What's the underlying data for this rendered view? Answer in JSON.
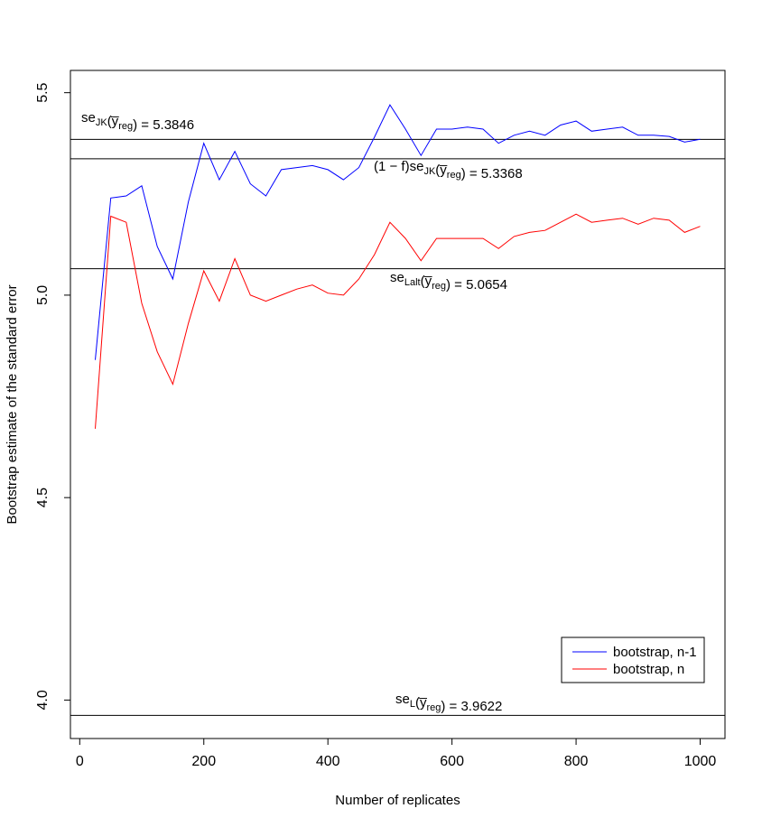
{
  "chart_data": {
    "type": "line",
    "title": "",
    "xlabel": "Number of replicates",
    "ylabel": "Bootstrap estimate of the standard error",
    "xlim": [
      -15,
      1040
    ],
    "ylim": [
      3.905,
      5.555
    ],
    "x_ticks": [
      0,
      200,
      400,
      600,
      800,
      1000
    ],
    "x_tick_labels": [
      "0",
      "200",
      "400",
      "600",
      "800",
      "1000"
    ],
    "y_ticks": [
      4.0,
      4.5,
      5.0,
      5.5
    ],
    "y_tick_labels": [
      "4.0",
      "4.5",
      "5.0",
      "5.5"
    ],
    "x": [
      25,
      50,
      75,
      100,
      125,
      150,
      175,
      200,
      225,
      250,
      275,
      300,
      325,
      350,
      375,
      400,
      425,
      450,
      475,
      500,
      525,
      550,
      575,
      600,
      625,
      650,
      675,
      700,
      725,
      750,
      775,
      800,
      825,
      850,
      875,
      900,
      925,
      950,
      975,
      1000
    ],
    "series": [
      {
        "name": "bootstrap, n-1",
        "color": "#0000ff",
        "values": [
          4.84,
          5.24,
          5.245,
          5.27,
          5.12,
          5.04,
          5.23,
          5.375,
          5.285,
          5.355,
          5.275,
          5.245,
          5.31,
          5.315,
          5.32,
          5.31,
          5.285,
          5.315,
          5.39,
          5.47,
          5.41,
          5.345,
          5.41,
          5.41,
          5.415,
          5.41,
          5.375,
          5.395,
          5.405,
          5.395,
          5.42,
          5.43,
          5.405,
          5.41,
          5.415,
          5.395,
          5.395,
          5.392,
          5.378,
          5.385
        ]
      },
      {
        "name": "bootstrap, n",
        "color": "#ff0000",
        "values": [
          4.67,
          5.195,
          5.18,
          4.98,
          4.86,
          4.78,
          4.93,
          5.06,
          4.985,
          5.09,
          5.0,
          4.985,
          5.0,
          5.015,
          5.025,
          5.005,
          5.0,
          5.04,
          5.1,
          5.18,
          5.14,
          5.085,
          5.14,
          5.14,
          5.14,
          5.14,
          5.115,
          5.145,
          5.155,
          5.16,
          5.18,
          5.2,
          5.18,
          5.185,
          5.19,
          5.175,
          5.19,
          5.185,
          5.155,
          5.17
        ]
      }
    ],
    "reference_lines": [
      {
        "y": 5.3846,
        "label_main": "se",
        "label_sub": "JK",
        "label_arg": "(y̅",
        "label_arg_sub": "reg",
        "label_close": ")",
        "label_value": " = 5.3846",
        "label_prefix": ""
      },
      {
        "y": 5.3368,
        "label_main": "se",
        "label_sub": "JK",
        "label_arg": "(y̅",
        "label_arg_sub": "reg",
        "label_close": ")",
        "label_value": " = 5.3368",
        "label_prefix": "(1 − f)"
      },
      {
        "y": 5.0654,
        "label_main": "se",
        "label_sub": "Lalt",
        "label_arg": "(y̅",
        "label_arg_sub": "reg",
        "label_close": ")",
        "label_value": " = 5.0654",
        "label_prefix": ""
      },
      {
        "y": 3.9622,
        "label_main": "se",
        "label_sub": "L",
        "label_arg": "(y̅",
        "label_arg_sub": "reg",
        "label_close": ")",
        "label_value": " = 3.9622",
        "label_prefix": ""
      }
    ],
    "legend": {
      "position": "bottom-right",
      "entries": [
        {
          "label": "bootstrap, n-1",
          "color": "#0000ff"
        },
        {
          "label": "bootstrap, n",
          "color": "#ff0000"
        }
      ]
    },
    "grid": false
  }
}
